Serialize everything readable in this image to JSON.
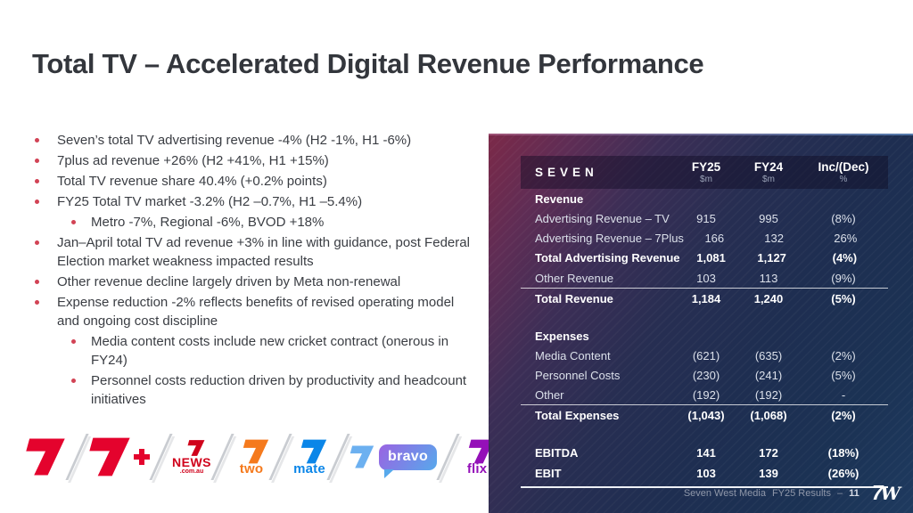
{
  "title": "Total TV – Accelerated Digital Revenue Performance",
  "bullets": [
    {
      "level": 1,
      "text": "Seven’s total TV advertising revenue -4% (H2 -1%, H1 -6%)"
    },
    {
      "level": 1,
      "text": "7plus ad revenue +26% (H2 +41%, H1 +15%)"
    },
    {
      "level": 1,
      "text": "Total TV revenue share 40.4% (+0.2% points)"
    },
    {
      "level": 1,
      "text": "FY25 Total TV market -3.2% (H2 –0.7%, H1 –5.4%)"
    },
    {
      "level": 2,
      "text": "Metro -7%, Regional -6%, BVOD +18%"
    },
    {
      "level": 1,
      "text": "Jan–April total TV ad revenue +3% in line with guidance, post Federal Election market weakness impacted results"
    },
    {
      "level": 1,
      "text": "Other revenue decline largely driven by Meta non-renewal"
    },
    {
      "level": 1,
      "text": "Expense reduction -2% reflects benefits of revised operating model and ongoing cost discipline"
    },
    {
      "level": 2,
      "text": "Media content costs include new cricket contract (onerous in FY24)"
    },
    {
      "level": 2,
      "text": "Personnel costs reduction driven by productivity and headcount initiatives"
    }
  ],
  "table": {
    "brand": "SEVEN",
    "columns": [
      {
        "label": "FY25",
        "sub": "$m"
      },
      {
        "label": "FY24",
        "sub": "$m"
      },
      {
        "label": "Inc/(Dec)",
        "sub": "%"
      }
    ],
    "rows": [
      {
        "type": "section",
        "label": "Revenue"
      },
      {
        "type": "normal",
        "label": "Advertising Revenue – TV",
        "fy25": "915",
        "fy24": "995",
        "chg": "(8%)"
      },
      {
        "type": "normal",
        "label": "Advertising Revenue – 7Plus",
        "fy25": "166",
        "fy24": "132",
        "chg": "26%"
      },
      {
        "type": "bold",
        "label": "Total Advertising Revenue",
        "fy25": "1,081",
        "fy24": "1,127",
        "chg": "(4%)"
      },
      {
        "type": "normal",
        "label": "Other Revenue",
        "fy25": "103",
        "fy24": "113",
        "chg": "(9%)"
      },
      {
        "type": "bold",
        "rule_above": true,
        "label": "Total Revenue",
        "fy25": "1,184",
        "fy24": "1,240",
        "chg": "(5%)"
      },
      {
        "type": "spacer"
      },
      {
        "type": "section",
        "label": "Expenses"
      },
      {
        "type": "normal",
        "label": "Media Content",
        "fy25": "(621)",
        "fy24": "(635)",
        "chg": "(2%)"
      },
      {
        "type": "normal",
        "label": "Personnel Costs",
        "fy25": "(230)",
        "fy24": "(241)",
        "chg": "(5%)"
      },
      {
        "type": "normal",
        "label": "Other",
        "fy25": "(192)",
        "fy24": "(192)",
        "chg": "-"
      },
      {
        "type": "bold",
        "rule_above": true,
        "label": "Total Expenses",
        "fy25": "(1,043)",
        "fy24": "(1,068)",
        "chg": "(2%)"
      },
      {
        "type": "spacer"
      },
      {
        "type": "bold",
        "label": "EBITDA",
        "fy25": "141",
        "fy24": "172",
        "chg": "(18%)"
      },
      {
        "type": "bold",
        "label": "EBIT",
        "fy25": "103",
        "fy24": "139",
        "chg": "(26%)"
      },
      {
        "type": "rule"
      }
    ]
  },
  "footer": {
    "company": "Seven West Media",
    "deck": "FY25 Results",
    "dash": "–",
    "page": "11",
    "logo_seven": "7",
    "logo_w": "W"
  },
  "logos": [
    {
      "name": "seven",
      "label": "7",
      "color": "#e4032d"
    },
    {
      "name": "seven-plus",
      "label": "7+",
      "color": "#e4032d"
    },
    {
      "name": "seven-news",
      "label": "NEWS",
      "sub": ".com.au",
      "color": "#d0021b"
    },
    {
      "name": "seven-two",
      "label": "two",
      "color": "#f57a1d"
    },
    {
      "name": "seven-mate",
      "label": "mate",
      "color": "#0b86e8"
    },
    {
      "name": "seven-bravo",
      "label": "bravo",
      "color": "#6cb0f0",
      "bubble_colors": [
        "#9a63e2",
        "#57a9ec"
      ]
    },
    {
      "name": "seven-flix",
      "label": "flix",
      "color": "#9410b8"
    }
  ],
  "colors": {
    "bullet_marker": "#d24355",
    "title_text": "#33363c",
    "panel_top_left": "#7c2948",
    "panel_bottom_right": "#1e3a5f",
    "table_text": "#ffffff"
  }
}
